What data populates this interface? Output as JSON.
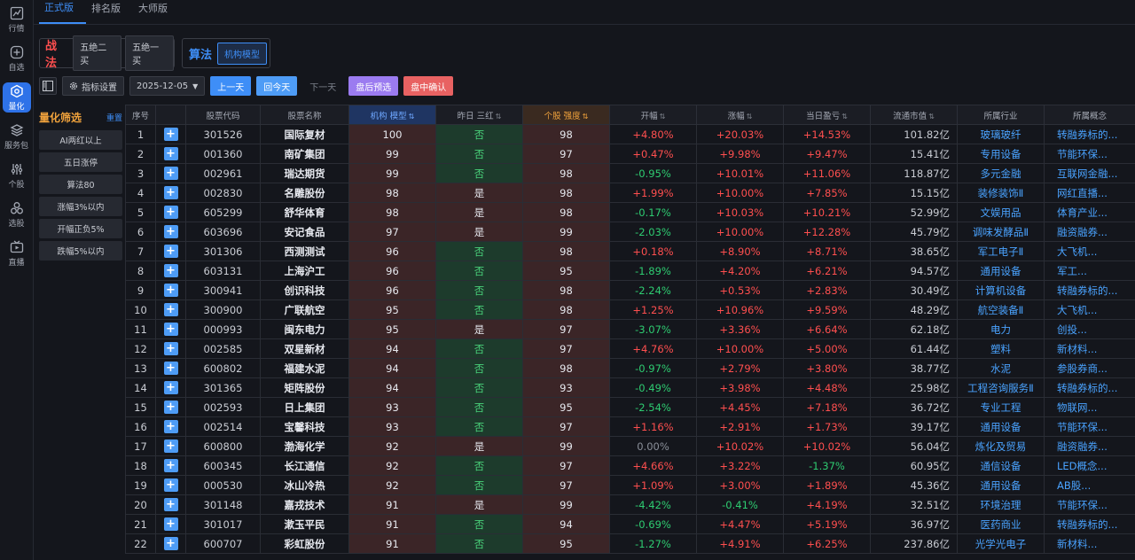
{
  "nav": [
    {
      "label": "行情",
      "icon": "chart-icon"
    },
    {
      "label": "自选",
      "icon": "plus-circle-icon"
    },
    {
      "label": "量化",
      "icon": "hexagon-icon"
    },
    {
      "label": "服务包",
      "icon": "layers-icon"
    },
    {
      "label": "个股",
      "icon": "sliders-icon"
    },
    {
      "label": "选股",
      "icon": "nodes-icon"
    },
    {
      "label": "直播",
      "icon": "tv-icon"
    }
  ],
  "tabs": [
    "正式版",
    "排名版",
    "大师版"
  ],
  "strategy": {
    "title": "战法",
    "options": [
      "五绝二买",
      "五绝一买"
    ]
  },
  "algo": {
    "title": "算法",
    "options": [
      "机构模型"
    ]
  },
  "toolbar": {
    "settings_label": "指标设置",
    "date": "2025-12-05",
    "prev_day": "上一天",
    "today": "回今天",
    "next_day": "下一天",
    "post_market": "盘后预选",
    "intraday": "盘中确认"
  },
  "filter": {
    "title": "量化筛选",
    "reset": "重置",
    "items": [
      "AI两红以上",
      "五日涨停",
      "算法80",
      "涨幅3%以内",
      "开幅正负5%",
      "跌幅5%以内"
    ]
  },
  "table": {
    "headers": [
      "序号",
      "",
      "股票代码",
      "股票名称",
      "机构 模型",
      "昨日 三红",
      "个股 强度",
      "开幅",
      "涨幅",
      "当日盈亏",
      "流通市值",
      "所属行业",
      "所属概念"
    ],
    "rows": [
      [
        "1",
        "301526",
        "国际复材",
        "100",
        "否",
        "98",
        "+4.80%",
        "+20.03%",
        "+14.53%",
        "101.82亿",
        "玻璃玻纤",
        "转融券标的..."
      ],
      [
        "2",
        "001360",
        "南矿集团",
        "99",
        "否",
        "97",
        "+0.47%",
        "+9.98%",
        "+9.47%",
        "15.41亿",
        "专用设备",
        "节能环保..."
      ],
      [
        "3",
        "002961",
        "瑞达期货",
        "99",
        "否",
        "98",
        "-0.95%",
        "+10.01%",
        "+11.06%",
        "118.87亿",
        "多元金融",
        "互联网金融..."
      ],
      [
        "4",
        "002830",
        "名雕股份",
        "98",
        "是",
        "98",
        "+1.99%",
        "+10.00%",
        "+7.85%",
        "15.15亿",
        "装修装饰Ⅱ",
        "网红直播..."
      ],
      [
        "5",
        "605299",
        "舒华体育",
        "98",
        "是",
        "98",
        "-0.17%",
        "+10.03%",
        "+10.21%",
        "52.99亿",
        "文娱用品",
        "体育产业..."
      ],
      [
        "6",
        "603696",
        "安记食品",
        "97",
        "是",
        "99",
        "-2.03%",
        "+10.00%",
        "+12.28%",
        "45.79亿",
        "调味发酵品Ⅱ",
        "融资融券..."
      ],
      [
        "7",
        "301306",
        "西测测试",
        "96",
        "否",
        "98",
        "+0.18%",
        "+8.90%",
        "+8.71%",
        "38.65亿",
        "军工电子Ⅱ",
        "大飞机..."
      ],
      [
        "8",
        "603131",
        "上海沪工",
        "96",
        "否",
        "95",
        "-1.89%",
        "+4.20%",
        "+6.21%",
        "94.57亿",
        "通用设备",
        "军工..."
      ],
      [
        "9",
        "300941",
        "创识科技",
        "96",
        "否",
        "98",
        "-2.24%",
        "+0.53%",
        "+2.83%",
        "30.49亿",
        "计算机设备",
        "转融券标的..."
      ],
      [
        "10",
        "300900",
        "广联航空",
        "95",
        "否",
        "98",
        "+1.25%",
        "+10.96%",
        "+9.59%",
        "48.29亿",
        "航空装备Ⅱ",
        "大飞机..."
      ],
      [
        "11",
        "000993",
        "闽东电力",
        "95",
        "是",
        "97",
        "-3.07%",
        "+3.36%",
        "+6.64%",
        "62.18亿",
        "电力",
        "创投..."
      ],
      [
        "12",
        "002585",
        "双星新材",
        "94",
        "否",
        "97",
        "+4.76%",
        "+10.00%",
        "+5.00%",
        "61.44亿",
        "塑料",
        "新材料..."
      ],
      [
        "13",
        "600802",
        "福建水泥",
        "94",
        "否",
        "98",
        "-0.97%",
        "+2.79%",
        "+3.80%",
        "38.77亿",
        "水泥",
        "参股券商..."
      ],
      [
        "14",
        "301365",
        "矩阵股份",
        "94",
        "否",
        "93",
        "-0.49%",
        "+3.98%",
        "+4.48%",
        "25.98亿",
        "工程咨询服务Ⅱ",
        "转融券标的..."
      ],
      [
        "15",
        "002593",
        "日上集团",
        "93",
        "否",
        "95",
        "-2.54%",
        "+4.45%",
        "+7.18%",
        "36.72亿",
        "专业工程",
        "物联网..."
      ],
      [
        "16",
        "002514",
        "宝馨科技",
        "93",
        "否",
        "97",
        "+1.16%",
        "+2.91%",
        "+1.73%",
        "39.17亿",
        "通用设备",
        "节能环保..."
      ],
      [
        "17",
        "600800",
        "渤海化学",
        "92",
        "是",
        "99",
        "0.00%",
        "+10.02%",
        "+10.02%",
        "56.04亿",
        "炼化及贸易",
        "融资融券..."
      ],
      [
        "18",
        "600345",
        "长江通信",
        "92",
        "否",
        "97",
        "+4.66%",
        "+3.22%",
        "-1.37%",
        "60.95亿",
        "通信设备",
        "LED概念..."
      ],
      [
        "19",
        "000530",
        "冰山冷热",
        "92",
        "否",
        "97",
        "+1.09%",
        "+3.00%",
        "+1.89%",
        "45.36亿",
        "通用设备",
        "AB股..."
      ],
      [
        "20",
        "301148",
        "嘉戎技术",
        "91",
        "是",
        "99",
        "-4.42%",
        "-0.41%",
        "+4.19%",
        "32.51亿",
        "环境治理",
        "节能环保..."
      ],
      [
        "21",
        "301017",
        "漱玉平民",
        "91",
        "否",
        "94",
        "-0.69%",
        "+4.47%",
        "+5.19%",
        "36.97亿",
        "医药商业",
        "转融券标的..."
      ],
      [
        "22",
        "600707",
        "彩虹股份",
        "91",
        "否",
        "95",
        "-1.27%",
        "+4.91%",
        "+6.25%",
        "237.86亿",
        "光学光电子",
        "新材料..."
      ]
    ]
  }
}
